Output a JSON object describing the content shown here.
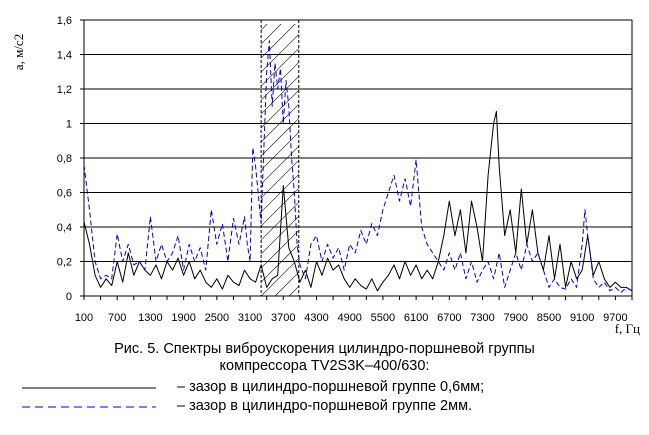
{
  "chart_data": {
    "type": "line",
    "ylabel": "a, м/с2",
    "xlabel": "f, Гц",
    "ylim": [
      0,
      1.6
    ],
    "xlim": [
      100,
      10000
    ],
    "yticks": [
      "0",
      "0,2",
      "0,4",
      "0,6",
      "0,8",
      "1",
      "1,2",
      "1,4",
      "1,6"
    ],
    "xticks": [
      "100",
      "700",
      "1300",
      "1900",
      "2500",
      "3100",
      "3700",
      "4300",
      "4900",
      "5500",
      "6100",
      "6700",
      "7300",
      "7900",
      "8500",
      "9100",
      "9700"
    ],
    "grid": "horizontal",
    "highlight_band": [
      3300,
      3980
    ],
    "series": [
      {
        "name": "– зазор в цилиндро-поршневой группе 0,6мм;",
        "color": "#000000",
        "style": "solid",
        "x": [
          100,
          200,
          300,
          400,
          500,
          600,
          700,
          800,
          900,
          1000,
          1100,
          1200,
          1300,
          1400,
          1500,
          1600,
          1700,
          1800,
          1900,
          2000,
          2100,
          2200,
          2300,
          2400,
          2500,
          2600,
          2700,
          2800,
          2900,
          3000,
          3100,
          3200,
          3300,
          3400,
          3500,
          3600,
          3700,
          3800,
          3900,
          4000,
          4100,
          4200,
          4300,
          4400,
          4500,
          4600,
          4700,
          4800,
          4900,
          5000,
          5100,
          5200,
          5300,
          5400,
          5500,
          5600,
          5700,
          5800,
          5900,
          6000,
          6100,
          6200,
          6300,
          6400,
          6500,
          6600,
          6700,
          6800,
          6900,
          7000,
          7100,
          7200,
          7300,
          7400,
          7500,
          7550,
          7600,
          7700,
          7800,
          7900,
          8000,
          8100,
          8200,
          8300,
          8400,
          8500,
          8600,
          8700,
          8800,
          8900,
          9000,
          9100,
          9200,
          9300,
          9400,
          9500,
          9600,
          9700,
          9800,
          9900,
          10000
        ],
        "y": [
          0.43,
          0.3,
          0.12,
          0.05,
          0.1,
          0.06,
          0.2,
          0.08,
          0.25,
          0.12,
          0.2,
          0.15,
          0.12,
          0.18,
          0.1,
          0.2,
          0.15,
          0.22,
          0.12,
          0.2,
          0.1,
          0.15,
          0.08,
          0.05,
          0.1,
          0.04,
          0.12,
          0.08,
          0.06,
          0.15,
          0.1,
          0.08,
          0.18,
          0.05,
          0.1,
          0.12,
          0.64,
          0.28,
          0.2,
          0.08,
          0.15,
          0.05,
          0.2,
          0.12,
          0.22,
          0.15,
          0.18,
          0.1,
          0.05,
          0.1,
          0.06,
          0.04,
          0.1,
          0.03,
          0.08,
          0.12,
          0.18,
          0.1,
          0.2,
          0.12,
          0.18,
          0.1,
          0.15,
          0.1,
          0.2,
          0.35,
          0.55,
          0.35,
          0.5,
          0.25,
          0.55,
          0.4,
          0.2,
          0.7,
          1.0,
          1.07,
          0.75,
          0.35,
          0.5,
          0.25,
          0.62,
          0.3,
          0.5,
          0.25,
          0.15,
          0.35,
          0.1,
          0.3,
          0.05,
          0.2,
          0.1,
          0.15,
          0.35,
          0.12,
          0.2,
          0.1,
          0.05,
          0.08,
          0.05,
          0.05,
          0.03
        ],
        "name_print": "– зазор в цилиндро-поршневой группе 0,6мм;"
      },
      {
        "name": "– зазор в цилиндро-поршневой группе 2мм.",
        "color": "#0000cc",
        "style": "dashed",
        "x": [
          100,
          200,
          300,
          400,
          500,
          600,
          700,
          800,
          900,
          1000,
          1100,
          1200,
          1300,
          1400,
          1500,
          1600,
          1700,
          1800,
          1900,
          2000,
          2100,
          2200,
          2300,
          2400,
          2500,
          2600,
          2700,
          2800,
          2900,
          3000,
          3050,
          3100,
          3150,
          3200,
          3300,
          3400,
          3450,
          3500,
          3550,
          3600,
          3650,
          3700,
          3750,
          3800,
          3850,
          3900,
          3950,
          4000,
          4100,
          4200,
          4300,
          4400,
          4500,
          4600,
          4700,
          4800,
          4900,
          5000,
          5100,
          5200,
          5300,
          5400,
          5500,
          5600,
          5700,
          5800,
          5900,
          6000,
          6100,
          6200,
          6300,
          6400,
          6500,
          6600,
          6700,
          6800,
          6900,
          7000,
          7100,
          7200,
          7300,
          7400,
          7500,
          7600,
          7700,
          7800,
          7900,
          8000,
          8100,
          8200,
          8300,
          8400,
          8500,
          8600,
          8700,
          8800,
          8900,
          9000,
          9100,
          9150,
          9200,
          9300,
          9400,
          9500,
          9600,
          9700,
          9800,
          9900,
          10000
        ],
        "y": [
          0.76,
          0.5,
          0.2,
          0.1,
          0.12,
          0.1,
          0.36,
          0.2,
          0.3,
          0.18,
          0.2,
          0.15,
          0.46,
          0.2,
          0.3,
          0.2,
          0.25,
          0.35,
          0.15,
          0.3,
          0.2,
          0.28,
          0.15,
          0.5,
          0.3,
          0.42,
          0.2,
          0.45,
          0.3,
          0.46,
          0.3,
          0.2,
          0.86,
          0.75,
          0.42,
          1.3,
          1.48,
          1.1,
          1.35,
          1.2,
          1.32,
          1.0,
          1.25,
          1.1,
          0.8,
          0.6,
          0.3,
          0.18,
          0.1,
          0.3,
          0.35,
          0.2,
          0.3,
          0.22,
          0.28,
          0.15,
          0.3,
          0.25,
          0.38,
          0.3,
          0.42,
          0.35,
          0.5,
          0.6,
          0.7,
          0.55,
          0.68,
          0.52,
          0.79,
          0.4,
          0.3,
          0.25,
          0.2,
          0.15,
          0.25,
          0.15,
          0.25,
          0.1,
          0.2,
          0.08,
          0.15,
          0.2,
          0.1,
          0.25,
          0.05,
          0.15,
          0.25,
          0.15,
          0.3,
          0.2,
          0.25,
          0.15,
          0.05,
          0.1,
          0.05,
          0.04,
          0.1,
          0.05,
          0.3,
          0.5,
          0.35,
          0.1,
          0.05,
          0.08,
          0.03,
          0.05,
          0.02,
          0.05,
          0.03
        ]
      }
    ]
  },
  "caption": {
    "line1": "Рис. 5. Спектры виброускорения цилиндро-поршневой группы",
    "line2": "компрессора TV2S3K–400/630:"
  },
  "legend": {
    "solid_label": "– зазор в цилиндро-поршневой группе 0,6мм;",
    "dashed_label": "– зазор в цилиндро-поршневой группе 2мм."
  }
}
